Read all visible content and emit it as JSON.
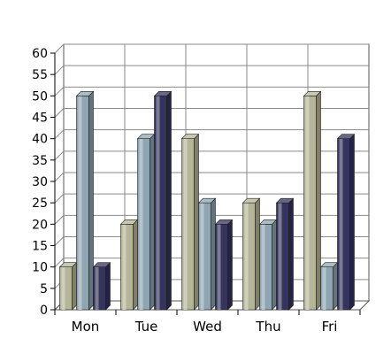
{
  "chart_data": {
    "type": "bar",
    "categories": [
      "Mon",
      "Tue",
      "Wed",
      "Thu",
      "Fri"
    ],
    "series": [
      {
        "values": [
          10,
          20,
          40,
          25,
          50
        ],
        "color": "#b5b597"
      },
      {
        "values": [
          50,
          40,
          25,
          20,
          10
        ],
        "color": "#8fa6b2"
      },
      {
        "values": [
          10,
          50,
          20,
          25,
          40
        ],
        "color": "#34345e"
      }
    ],
    "ylim": [
      0,
      60
    ],
    "yticks": [
      0,
      5,
      10,
      15,
      20,
      25,
      30,
      35,
      40,
      45,
      50,
      55,
      60
    ],
    "grid": true,
    "style": "3d"
  }
}
